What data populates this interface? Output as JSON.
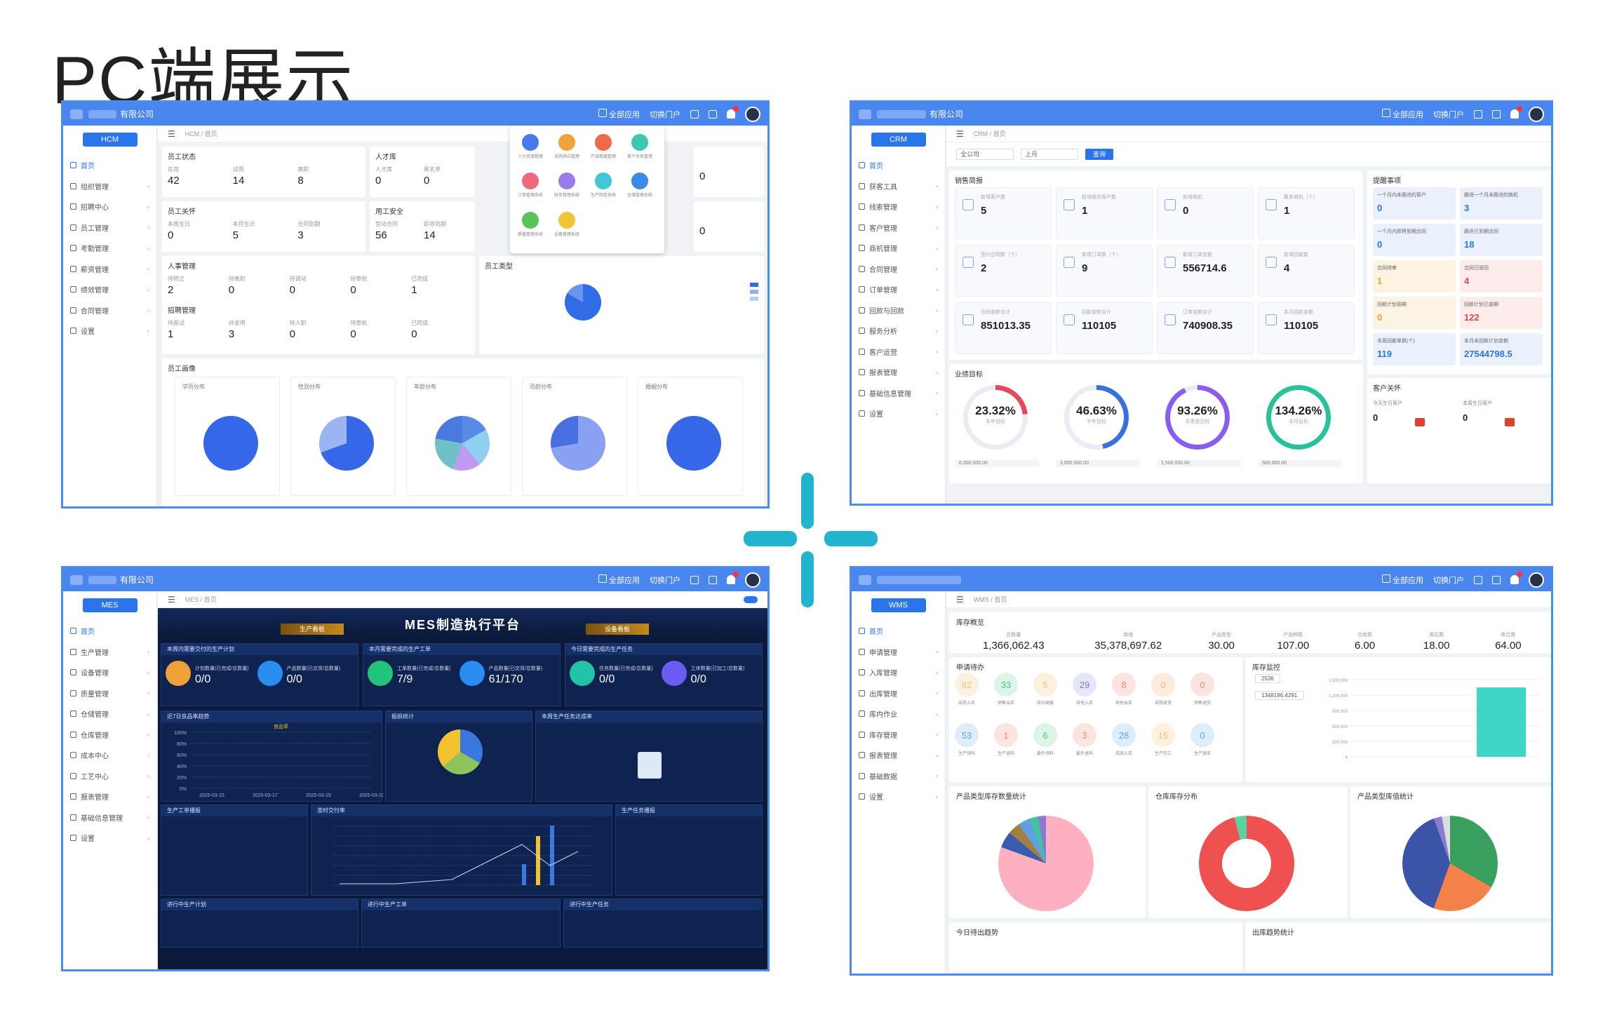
{
  "title": "PC端展示",
  "common": {
    "company": "有限公司",
    "all_apps": "全部应用",
    "switch_portal": "切换门户",
    "home": "首页"
  },
  "hcm": {
    "tag": "HCM",
    "breadcrumb": "HCM / 首页",
    "menu": [
      "首页",
      "组织管理",
      "招聘中心",
      "员工管理",
      "考勤管理",
      "薪资管理",
      "绩效管理",
      "合同管理",
      "设置"
    ],
    "cards": {
      "status": {
        "title": "员工状态",
        "labels": [
          "在岗",
          "试用",
          "离职"
        ],
        "values": [
          "42",
          "14",
          "8"
        ]
      },
      "talent": {
        "title": "人才库",
        "labels": [
          "人才库",
          "黑名单"
        ],
        "values": [
          "0",
          "0"
        ]
      },
      "right1": {
        "values": [
          "0"
        ]
      },
      "care": {
        "title": "员工关怀",
        "labels": [
          "本周生日",
          "本月生日",
          "合同到期"
        ],
        "values": [
          "0",
          "5",
          "3"
        ]
      },
      "safety": {
        "title": "用工安全",
        "labels": [
          "劳动合同",
          "即将到期"
        ],
        "values": [
          "56",
          "14"
        ]
      },
      "right2": {
        "values": [
          "0"
        ]
      },
      "hr": {
        "title": "人事管理",
        "labels": [
          "待转正",
          "待离职",
          "待调动",
          "待审批",
          "已完成"
        ],
        "values": [
          "2",
          "0",
          "0",
          "0",
          "1"
        ]
      },
      "recruit": {
        "title": "招聘管理",
        "labels": [
          "待面试",
          "待录用",
          "待入职",
          "待审批",
          "已完成"
        ],
        "values": [
          "1",
          "3",
          "0",
          "0",
          "0"
        ]
      },
      "type": {
        "title": "员工类型"
      },
      "portrait": {
        "title": "员工画像",
        "pies": [
          "学历分布",
          "性别分布",
          "年龄分布",
          "司龄分布",
          "婚姻分布"
        ]
      }
    },
    "apps": [
      "人力资源管理",
      "采购供应管理",
      "产品数据管理",
      "客户关系管理",
      "订单管理系统",
      "财务管理系统",
      "生产制造系统",
      "仓储管理系统",
      "质量管理系统",
      "设备管理系统"
    ]
  },
  "crm": {
    "tag": "CRM",
    "breadcrumb": "CRM / 首页",
    "menu": [
      "首页",
      "获客工具",
      "线索管理",
      "客户管理",
      "商机管理",
      "合同管理",
      "订单管理",
      "回款与回款",
      "服务分析",
      "客户运营",
      "报表管理",
      "基础信息管理",
      "设置"
    ],
    "filter": {
      "scope": "全公司",
      "period": "上月",
      "query": "查询"
    },
    "section": "销售简报",
    "kpis": [
      {
        "label": "新增客户数",
        "value": "5"
      },
      {
        "label": "新增跟进客户数",
        "value": "1"
      },
      {
        "label": "新增商机",
        "value": "0"
      },
      {
        "label": "赢单商机（个）",
        "value": "1"
      },
      {
        "label": "签约合同数（个）",
        "value": "2"
      },
      {
        "label": "新增订单数（个）",
        "value": "9"
      },
      {
        "label": "新增订单金额",
        "value": "556714.6"
      },
      {
        "label": "新增回款数",
        "value": "4"
      },
      {
        "label": "合同金额合计",
        "value": "851013.35"
      },
      {
        "label": "回款金额合计",
        "value": "110105"
      },
      {
        "label": "订单金额合计",
        "value": "740908.35"
      },
      {
        "label": "本月回款金额",
        "value": "110105"
      }
    ],
    "goal_title": "业绩目标",
    "rings": [
      {
        "pct": "23.32%",
        "label": "本年目标",
        "fill": 0.2332,
        "color": "#e8485c",
        "amount": "6,000,000.00"
      },
      {
        "pct": "46.63%",
        "label": "半年目标",
        "fill": 0.4663,
        "color": "#3a6fe0",
        "amount": "3,000,000.00"
      },
      {
        "pct": "93.26%",
        "label": "本季度目标",
        "fill": 0.9326,
        "color": "#8a5cf0",
        "amount": "1,500,000.00"
      },
      {
        "pct": "134.26%",
        "label": "本月目标",
        "fill": 1.0,
        "color": "#27c29a",
        "amount": "500,000.00"
      }
    ],
    "reminders_title": "提醒事项",
    "reminders": [
      {
        "label": "一个月内未跟进的客户",
        "value": "0"
      },
      {
        "label": "跟进一个月未跟进的商机",
        "value": "3"
      },
      {
        "label": "一个月内即将到期合同",
        "value": "0"
      },
      {
        "label": "跟进已到期合同",
        "value": "18"
      },
      {
        "label": "合同待审",
        "value": "1"
      },
      {
        "label": "合同已驳回",
        "value": "4"
      },
      {
        "label": "回款计划逾期",
        "value": "0"
      },
      {
        "label": "回款计划已逾期",
        "value": "122"
      },
      {
        "label": "本周回款单数(个)",
        "value": "119"
      },
      {
        "label": "本月未回款计划金额",
        "value": "27544798.5"
      }
    ],
    "care_title": "客户关怀",
    "care": [
      {
        "label": "今天生日客户",
        "value": "0"
      },
      {
        "label": "本周生日客户",
        "value": "0"
      }
    ]
  },
  "mes": {
    "tag": "MES",
    "breadcrumb": "MES / 首页",
    "menu": [
      "首页",
      "生产管理",
      "设备管理",
      "质量管理",
      "仓储管理",
      "仓库管理",
      "成本中心",
      "工艺中心",
      "报表管理",
      "基础信息管理",
      "设置"
    ],
    "header": "MES制造执行平台",
    "tab_left": "生产看板",
    "tab_right": "设备看板",
    "boxes": [
      "本周内需要交付的生产计划",
      "本月需要完成的生产工单",
      "今日需要完成的生产任务"
    ],
    "stats": [
      {
        "label": "计划数量(已完成/总数量)",
        "value": "0/0",
        "color": "#f0a13a"
      },
      {
        "label": "产品数量(已交货/总数量)",
        "value": "0/0",
        "color": "#2a8bf0"
      },
      {
        "label": "工单数量(已完成/总数量)",
        "value": "7/9",
        "color": "#22c47a"
      },
      {
        "label": "产品数量(已交货/总数量)",
        "value": "61/170",
        "color": "#2a8bf0"
      },
      {
        "label": "任务数量(已完成/总数量)",
        "value": "0/0",
        "color": "#22c4a8"
      },
      {
        "label": "工序数量(已加工/总数量)",
        "value": "0/0",
        "color": "#6a5cf0"
      }
    ],
    "charts": [
      "近7日良品率趋势",
      "报损统计",
      "本周生产任务达成率",
      "生产工单播报",
      "准时交付率",
      "生产任务播报",
      "进行中生产计划",
      "进行中生产工单",
      "进行中生产任务"
    ],
    "rate_labels": [
      "100%",
      "80%",
      "60%",
      "40%",
      "20%",
      "0%"
    ],
    "rate_dates": [
      "2025-03-15",
      "2025-03-17",
      "2025-03-19",
      "2025-03-21"
    ],
    "legend_rate": "良品率"
  },
  "wms": {
    "tag": "WMS",
    "breadcrumb": "WMS / 首页",
    "menu": [
      "首页",
      "申请管理",
      "入库管理",
      "出库管理",
      "库内作业",
      "库存管理",
      "报表管理",
      "基础数据",
      "设置"
    ],
    "overview_title": "库存概览",
    "overview": [
      {
        "label": "总数量",
        "value": "1,366,062.43"
      },
      {
        "label": "库值",
        "value": "35,378,697.62"
      },
      {
        "label": "产品类型",
        "value": "30.00"
      },
      {
        "label": "产品种数",
        "value": "107.00"
      },
      {
        "label": "仓库数",
        "value": "6.00"
      },
      {
        "label": "库区数",
        "value": "18.00"
      },
      {
        "label": "库位数",
        "value": "64.00"
      }
    ],
    "todo_title": "申请待办",
    "todos": [
      {
        "label": "采购入库",
        "value": "82",
        "color": "#f3c27a",
        "bg": "#fdf1de"
      },
      {
        "label": "销售出库",
        "value": "33",
        "color": "#4cc48a",
        "bg": "#dcf5e8"
      },
      {
        "label": "库间调拨",
        "value": "5",
        "color": "#f3c27a",
        "bg": "#fdf1de"
      },
      {
        "label": "其他入库",
        "value": "29",
        "color": "#7a7ae0",
        "bg": "#e6e6fa"
      },
      {
        "label": "其他出库",
        "value": "8",
        "color": "#f08a7a",
        "bg": "#fde4e0"
      },
      {
        "label": "采购退货",
        "value": "0",
        "color": "#f3b07a",
        "bg": "#fdebdc"
      },
      {
        "label": "销售退货",
        "value": "0",
        "color": "#f08a7a",
        "bg": "#fde4e0"
      },
      {
        "label": "生产领料",
        "value": "53",
        "color": "#5aa8e0",
        "bg": "#ddeefa"
      },
      {
        "label": "生产退料",
        "value": "1",
        "color": "#f08a7a",
        "bg": "#fde4e0"
      },
      {
        "label": "委外领料",
        "value": "6",
        "color": "#4cc48a",
        "bg": "#dcf5e8"
      },
      {
        "label": "委外退料",
        "value": "3",
        "color": "#f08a7a",
        "bg": "#fde4e0"
      },
      {
        "label": "成品入库",
        "value": "28",
        "color": "#5aa8e0",
        "bg": "#ddeefa"
      },
      {
        "label": "生产完工",
        "value": "15",
        "color": "#f3c27a",
        "bg": "#fdf1de"
      },
      {
        "label": "生产退库",
        "value": "0",
        "color": "#5aa8e0",
        "bg": "#ddeefa"
      }
    ],
    "monitor_title": "库存监控",
    "monitor_values": [
      "2536",
      "1348196.4291"
    ],
    "bar_axis": [
      "1,500,000",
      "1,200,000",
      "900,000",
      "600,000",
      "300,000",
      "0"
    ],
    "charts": [
      "产品类型库存数量统计",
      "仓库库存分布",
      "产品类型库值统计",
      "今日待出趋势",
      "出库趋势统计"
    ]
  },
  "colors": {
    "accent": "#4a86ef",
    "divider": "#22b4cf"
  }
}
